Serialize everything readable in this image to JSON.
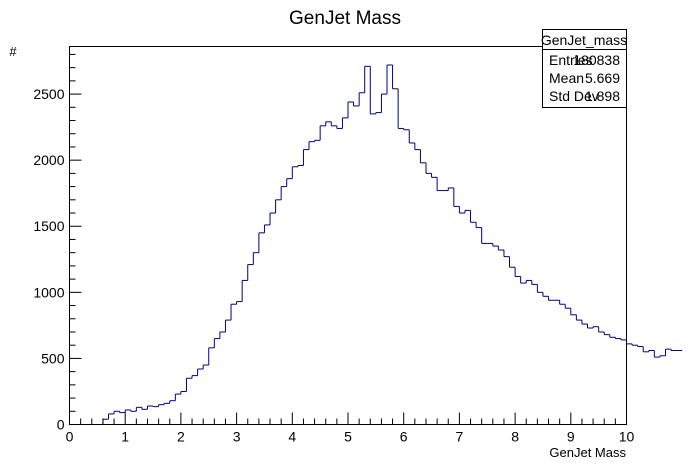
{
  "chart_data": {
    "type": "bar",
    "title": "GenJet Mass",
    "xlabel": "GenJet Mass",
    "ylabel": "#",
    "xlim": [
      0,
      10
    ],
    "ylim": [
      0,
      2860
    ],
    "x_ticks": [
      0,
      1,
      2,
      3,
      4,
      5,
      6,
      7,
      8,
      9,
      10
    ],
    "y_ticks": [
      0,
      500,
      1000,
      1500,
      2000,
      2500
    ],
    "bin_width": 0.1,
    "grid": false,
    "legend": "none",
    "line_color": "#000080",
    "stats_box": {
      "title": "GenJet_mass",
      "placement": "top-right",
      "rows": [
        {
          "label": "Entries",
          "value": "180838"
        },
        {
          "label": "Mean",
          "value": "5.669"
        },
        {
          "label": "Std Dev",
          "value": "1.898"
        }
      ]
    },
    "series": [
      {
        "bin_edges_start": 0,
        "values": [
          0,
          0,
          0,
          0,
          0,
          0,
          40,
          80,
          100,
          90,
          110,
          100,
          130,
          115,
          140,
          135,
          150,
          160,
          180,
          230,
          250,
          350,
          370,
          420,
          450,
          580,
          650,
          700,
          790,
          910,
          930,
          1090,
          1210,
          1300,
          1450,
          1510,
          1600,
          1700,
          1800,
          1860,
          1950,
          1960,
          2080,
          2140,
          2150,
          2260,
          2290,
          2260,
          2240,
          2320,
          2440,
          2410,
          2510,
          2710,
          2350,
          2360,
          2500,
          2720,
          2540,
          2240,
          2230,
          2130,
          2080,
          1980,
          1900,
          1870,
          1770,
          1770,
          1790,
          1650,
          1600,
          1620,
          1530,
          1490,
          1370,
          1370,
          1350,
          1320,
          1270,
          1190,
          1120,
          1070,
          1090,
          1060,
          1000,
          970,
          940,
          940,
          910,
          880,
          830,
          790,
          760,
          730,
          740,
          700,
          680,
          660,
          650,
          640,
          610,
          600,
          590,
          550,
          560,
          510,
          520,
          570,
          560,
          560
        ]
      }
    ]
  }
}
